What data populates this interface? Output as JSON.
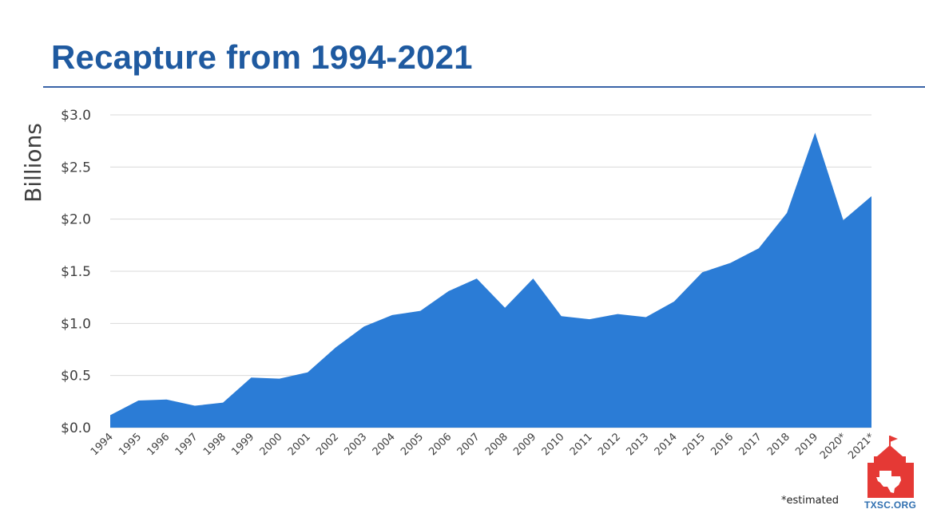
{
  "title": "Recapture from 1994-2021",
  "footnote": "*estimated",
  "logo": {
    "text": "TXSC.ORG",
    "icon": "schoolhouse-texas-icon",
    "color": "#e53935"
  },
  "colors": {
    "title": "#1f5aa0",
    "area": "#2b7cd6",
    "grid": "#d9d9d9",
    "text": "#404040"
  },
  "chart_data": {
    "type": "area",
    "ylabel": "Billions",
    "ylim": [
      0,
      3.0
    ],
    "y_ticks": [
      0.0,
      0.5,
      1.0,
      1.5,
      2.0,
      2.5,
      3.0
    ],
    "y_tick_labels": [
      "$0.0",
      "$0.5",
      "$1.0",
      "$1.5",
      "$2.0",
      "$2.5",
      "$3.0"
    ],
    "grid": true,
    "categories": [
      "1994",
      "1995",
      "1996",
      "1997",
      "1998",
      "1999",
      "2000",
      "2001",
      "2002",
      "2003",
      "2004",
      "2005",
      "2006",
      "2007",
      "2008",
      "2009",
      "2010",
      "2011",
      "2012",
      "2013",
      "2014",
      "2015",
      "2016",
      "2017",
      "2018",
      "2019",
      "2020*",
      "2021*"
    ],
    "values": [
      0.12,
      0.26,
      0.27,
      0.21,
      0.24,
      0.48,
      0.47,
      0.53,
      0.77,
      0.97,
      1.08,
      1.12,
      1.31,
      1.43,
      1.15,
      1.43,
      1.07,
      1.04,
      1.09,
      1.06,
      1.21,
      1.49,
      1.58,
      1.72,
      2.06,
      2.83,
      1.99,
      2.22
    ]
  }
}
